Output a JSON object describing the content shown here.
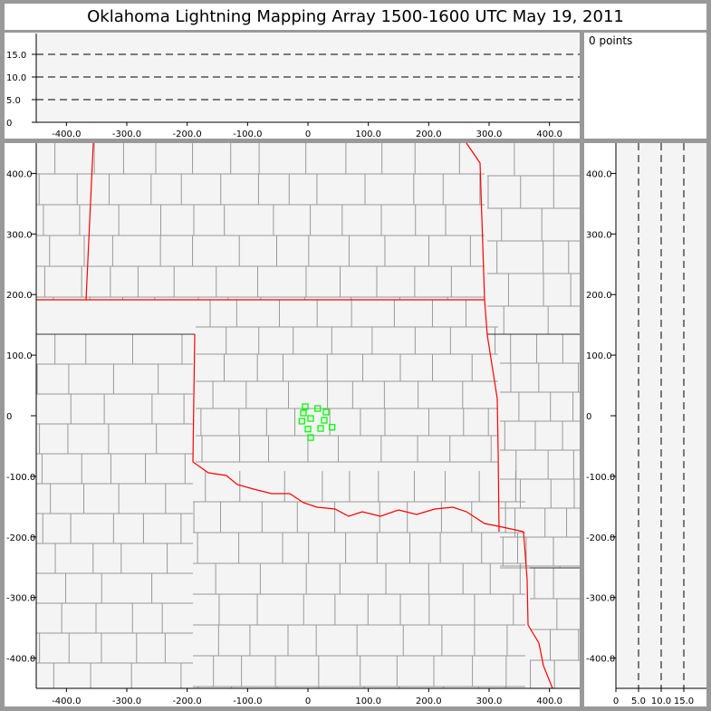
{
  "title": "Oklahoma Lightning Mapping Array   1500-1600 UTC  May 19, 2011",
  "legend": {
    "points_label": "0 points"
  },
  "colors": {
    "panel_bg": "#f4f4f4",
    "state_border": "#ff0000",
    "county_border": "#999999",
    "station": "#00ff00",
    "frame": "#999999"
  },
  "plan_view": {
    "xlim": [
      -450,
      450
    ],
    "ylim": [
      -450,
      450
    ],
    "x_ticks": [
      {
        "v": -400,
        "label": "-400.0"
      },
      {
        "v": -300,
        "label": "-300.0"
      },
      {
        "v": -200,
        "label": "-200.0"
      },
      {
        "v": -100,
        "label": "-100.0"
      },
      {
        "v": 0,
        "label": "0"
      },
      {
        "v": 100,
        "label": "100.0"
      },
      {
        "v": 200,
        "label": "200.0"
      },
      {
        "v": 300,
        "label": "300.0"
      },
      {
        "v": 400,
        "label": "400.0"
      }
    ],
    "y_ticks": [
      {
        "v": 400,
        "label": "400.0"
      },
      {
        "v": 300,
        "label": "300.0"
      },
      {
        "v": 200,
        "label": "200.0"
      },
      {
        "v": 100,
        "label": "100.0"
      },
      {
        "v": 0,
        "label": "0"
      },
      {
        "v": -100,
        "label": "-100.0"
      },
      {
        "v": -200,
        "label": "-200.0"
      },
      {
        "v": -300,
        "label": "-300.0"
      },
      {
        "v": -400,
        "label": "-400.0"
      }
    ],
    "stations": [
      {
        "x": -4.5,
        "y": 15
      },
      {
        "x": -7.5,
        "y": 4.5
      },
      {
        "x": 16,
        "y": 12
      },
      {
        "x": 30,
        "y": 6
      },
      {
        "x": -10,
        "y": -9
      },
      {
        "x": 4.5,
        "y": -4.5
      },
      {
        "x": 27,
        "y": -7.5
      },
      {
        "x": 0,
        "y": -22
      },
      {
        "x": 21,
        "y": -21
      },
      {
        "x": 40,
        "y": -19
      },
      {
        "x": 4.5,
        "y": -36
      }
    ]
  },
  "alt_lon": {
    "ylim": [
      0,
      20
    ],
    "dashed_levels": [
      5,
      10,
      15
    ],
    "y_ticks": [
      {
        "v": 0,
        "label": "0"
      },
      {
        "v": 5,
        "label": "5.0"
      },
      {
        "v": 10,
        "label": "10.0"
      },
      {
        "v": 15,
        "label": "15.0"
      }
    ]
  },
  "alt_lat": {
    "xlim": [
      0,
      20
    ],
    "dashed_levels": [
      5,
      10,
      15
    ],
    "x_ticks": [
      {
        "v": 0,
        "label": "0"
      },
      {
        "v": 5,
        "label": "5.0"
      },
      {
        "v": 10,
        "label": "10.0"
      },
      {
        "v": 15,
        "label": "15.0"
      }
    ]
  }
}
